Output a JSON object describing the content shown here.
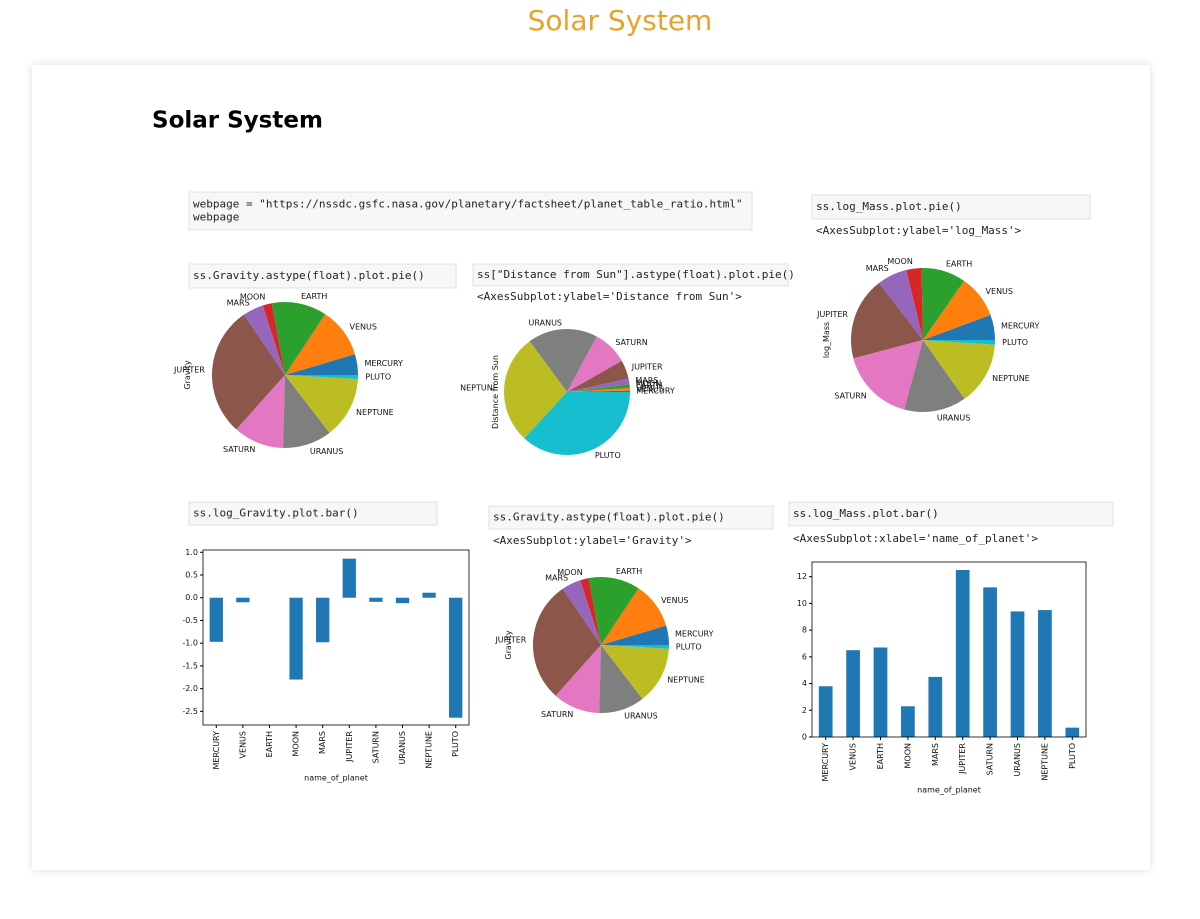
{
  "page_title": "Solar System",
  "heading": "Solar System",
  "cells": [
    {
      "code": [
        "webpage = \"https://nssdc.gsfc.nasa.gov/planetary/factsheet/planet_table_ratio.html\"",
        "webpage"
      ]
    },
    {
      "code": [
        "ss.log_Mass.plot.pie()"
      ],
      "output": "<AxesSubplot:ylabel='log_Mass'>"
    },
    {
      "code": [
        "ss.Gravity.astype(float).plot.pie()"
      ]
    },
    {
      "code": [
        "ss[\"Distance from Sun\"].astype(float).plot.pie()"
      ],
      "output": "<AxesSubplot:ylabel='Distance from Sun'>"
    },
    {
      "code": [
        "ss.log_Gravity.plot.bar()"
      ]
    },
    {
      "code": [
        "ss.Gravity.astype(float).plot.pie()"
      ],
      "output": "<AxesSubplot:ylabel='Gravity'>"
    },
    {
      "code": [
        "ss.log_Mass.plot.bar()"
      ],
      "output": "<AxesSubplot:xlabel='name_of_planet'>"
    }
  ],
  "chart_data": [
    {
      "type": "pie",
      "ylabel": "Gravity",
      "categories": [
        "MERCURY",
        "VENUS",
        "EARTH",
        "MOON",
        "MARS",
        "JUPITER",
        "SATURN",
        "URANUS",
        "NEPTUNE",
        "PLUTO"
      ],
      "values": [
        0.378,
        0.907,
        1.0,
        0.166,
        0.377,
        2.36,
        0.916,
        0.889,
        1.12,
        0.071
      ],
      "colors": [
        "#1f77b4",
        "#ff7f0e",
        "#2ca02c",
        "#d62728",
        "#9467bd",
        "#8c564b",
        "#e377c2",
        "#7f7f7f",
        "#bcbd22",
        "#17becf"
      ]
    },
    {
      "type": "pie",
      "ylabel": "Distance from Sun",
      "categories": [
        "MERCURY",
        "VENUS",
        "EARTH",
        "MOON",
        "MARS",
        "JUPITER",
        "SATURN",
        "URANUS",
        "NEPTUNE",
        "PLUTO"
      ],
      "values": [
        0.387,
        0.723,
        1.0,
        0.00257,
        1.52,
        5.2,
        9.58,
        19.2,
        30.05,
        39.48
      ],
      "colors": [
        "#1f77b4",
        "#ff7f0e",
        "#2ca02c",
        "#d62728",
        "#9467bd",
        "#8c564b",
        "#e377c2",
        "#7f7f7f",
        "#bcbd22",
        "#17becf"
      ]
    },
    {
      "type": "pie",
      "ylabel": "log_Mass",
      "categories": [
        "MERCURY",
        "VENUS",
        "EARTH",
        "MOON",
        "MARS",
        "JUPITER",
        "SATURN",
        "URANUS",
        "NEPTUNE",
        "PLUTO"
      ],
      "values": [
        3.8,
        6.5,
        6.7,
        2.3,
        4.5,
        12.5,
        11.2,
        9.4,
        9.5,
        0.7
      ],
      "colors": [
        "#1f77b4",
        "#ff7f0e",
        "#2ca02c",
        "#d62728",
        "#9467bd",
        "#8c564b",
        "#e377c2",
        "#7f7f7f",
        "#bcbd22",
        "#17becf"
      ]
    },
    {
      "type": "bar",
      "xlabel": "name_of_planet",
      "color": "#1f77b4",
      "categories": [
        "MERCURY",
        "VENUS",
        "EARTH",
        "MOON",
        "MARS",
        "JUPITER",
        "SATURN",
        "URANUS",
        "NEPTUNE",
        "PLUTO"
      ],
      "values": [
        -0.97,
        -0.1,
        0,
        -1.8,
        -0.98,
        0.86,
        -0.09,
        -0.12,
        0.11,
        -2.64
      ],
      "ylim": [
        -2.8,
        1.05
      ],
      "yticks": [
        {
          "value": 1,
          "label": "1.0"
        },
        0.5,
        {
          "value": 0,
          "label": "0.0"
        },
        -0.5,
        {
          "value": -1,
          "label": "-1.0"
        },
        -1.5,
        {
          "value": -2,
          "label": "-2.0"
        },
        -2.5
      ]
    },
    {
      "type": "pie",
      "ylabel": "Gravity",
      "categories": [
        "MERCURY",
        "VENUS",
        "EARTH",
        "MOON",
        "MARS",
        "JUPITER",
        "SATURN",
        "URANUS",
        "NEPTUNE",
        "PLUTO"
      ],
      "values": [
        0.378,
        0.907,
        1.0,
        0.166,
        0.377,
        2.36,
        0.916,
        0.889,
        1.12,
        0.071
      ],
      "colors": [
        "#1f77b4",
        "#ff7f0e",
        "#2ca02c",
        "#d62728",
        "#9467bd",
        "#8c564b",
        "#e377c2",
        "#7f7f7f",
        "#bcbd22",
        "#17becf"
      ]
    },
    {
      "type": "bar",
      "xlabel": "name_of_planet",
      "color": "#1f77b4",
      "categories": [
        "MERCURY",
        "VENUS",
        "EARTH",
        "MOON",
        "MARS",
        "JUPITER",
        "SATURN",
        "URANUS",
        "NEPTUNE",
        "PLUTO"
      ],
      "values": [
        3.8,
        6.5,
        6.7,
        2.3,
        4.5,
        12.5,
        11.2,
        9.4,
        9.5,
        0.7
      ],
      "ylim": [
        0,
        13.1
      ],
      "yticks": [
        0,
        2,
        4,
        6,
        8,
        10,
        12
      ]
    }
  ]
}
